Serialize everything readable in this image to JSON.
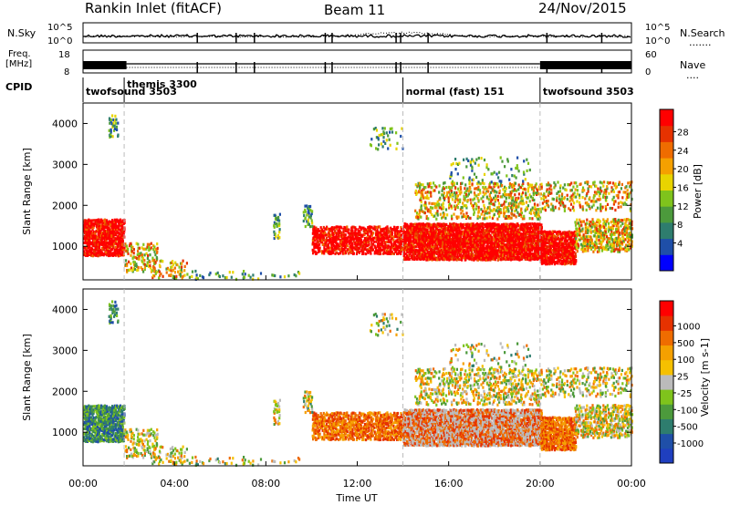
{
  "header": {
    "station": "Rankin Inlet (fitACF)",
    "beam": "Beam 11",
    "date": "24/Nov/2015"
  },
  "noise_panel": {
    "left_label": "N.Sky",
    "right_label": "N.Search",
    "left_ticks": [
      "10^5",
      "10^0"
    ],
    "right_ticks": [
      "10^5",
      "10^0"
    ],
    "right_legend": "......."
  },
  "freq_panel": {
    "left_label_1": "Freq.",
    "left_label_2": "[MHz]",
    "right_label": "Nave",
    "right_legend": "....",
    "left_ticks": [
      "18",
      "8"
    ],
    "right_ticks": [
      "60",
      "0"
    ]
  },
  "cpid_panel": {
    "label": "CPID",
    "segments": [
      {
        "name": "twofsound 3503",
        "start": 0.0,
        "end": 1.8
      },
      {
        "name": "themis 3300",
        "start": 1.8,
        "end": 14.0
      },
      {
        "name": "normal (fast) 151",
        "start": 14.0,
        "end": 20.0
      },
      {
        "name": "twofsound 3503",
        "start": 20.0,
        "end": 24.0
      }
    ]
  },
  "chart_data": [
    {
      "type": "heatmap",
      "ylabel": "Slant Range [km]",
      "xlim_hours": [
        0,
        24
      ],
      "ylim": [
        180,
        4500
      ],
      "y_ticks": [
        "1000",
        "2000",
        "3000",
        "4000"
      ],
      "y_tick_values": [
        1000,
        2000,
        3000,
        4000
      ],
      "colorbar": {
        "label": "Power [dB]",
        "ticks": [
          "4",
          "8",
          "12",
          "16",
          "20",
          "24",
          "28"
        ],
        "colors": [
          "#0000ff",
          "#1f4fa8",
          "#2e7d6e",
          "#4c9a3c",
          "#7fc31c",
          "#e8d400",
          "#f5a000",
          "#ef6c00",
          "#e63200",
          "#ff0000"
        ]
      }
    },
    {
      "type": "heatmap",
      "ylabel": "Slant Range [km]",
      "xlim_hours": [
        0,
        24
      ],
      "ylim": [
        180,
        4500
      ],
      "y_ticks": [
        "1000",
        "2000",
        "3000",
        "4000"
      ],
      "y_tick_values": [
        1000,
        2000,
        3000,
        4000
      ],
      "colorbar": {
        "label": "Velocity [m s-1]",
        "ticks": [
          "1000",
          "500",
          "100",
          "25",
          "-25",
          "-100",
          "-500",
          "-1000"
        ],
        "colors": [
          "#1f3fbf",
          "#1f4fa8",
          "#2e7d6e",
          "#4c9a3c",
          "#7fc31c",
          "#bbbbbb",
          "#f5c000",
          "#f5a000",
          "#ef6c00",
          "#e63200",
          "#ff0000"
        ]
      }
    }
  ],
  "x_axis": {
    "label": "Time UT",
    "ticks": [
      "00:00",
      "04:00",
      "08:00",
      "12:00",
      "16:00",
      "20:00",
      "00:00"
    ]
  }
}
